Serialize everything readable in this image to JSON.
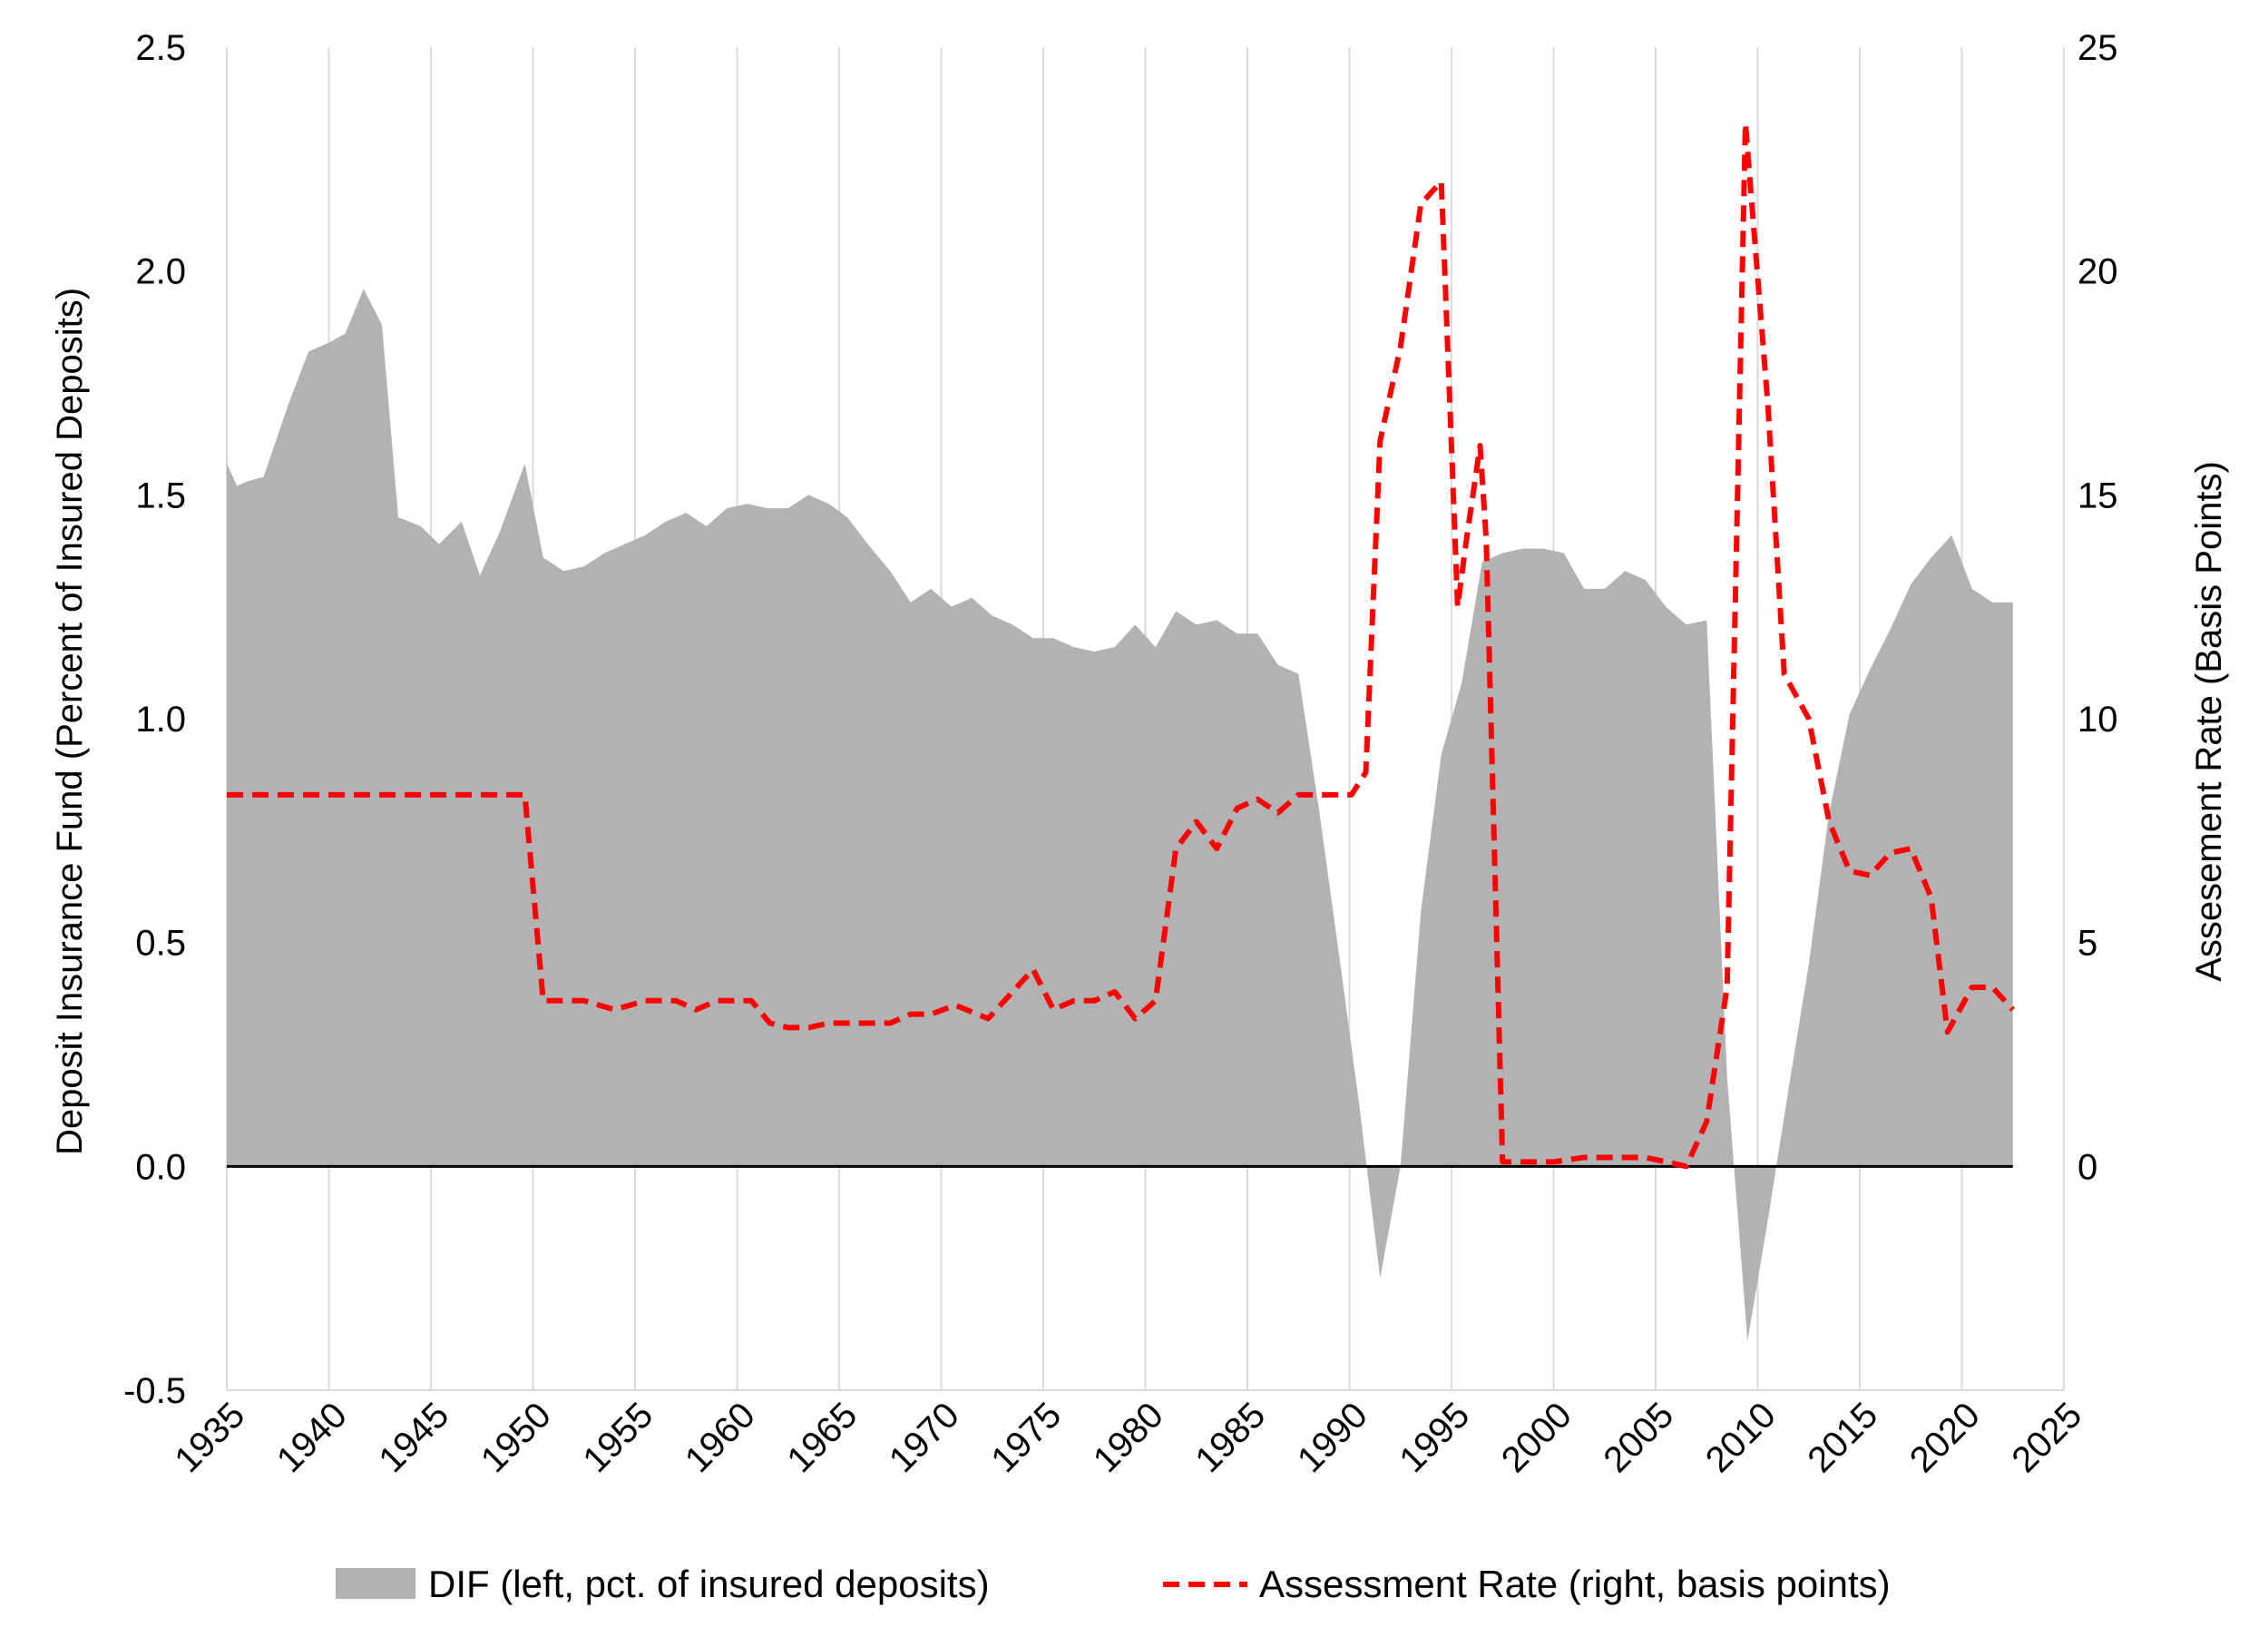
{
  "chart_data": {
    "type": "area",
    "ylabel_left": "Deposit Insurance Fund (Percent of Insured Deposits)",
    "ylabel_right": "Assesement Rate (Basis Points)",
    "x_range": [
      1935,
      2025
    ],
    "x_ticks": [
      "1935",
      "1940",
      "1945",
      "1950",
      "1955",
      "1960",
      "1965",
      "1970",
      "1975",
      "1980",
      "1985",
      "1990",
      "1995",
      "2000",
      "2005",
      "2010",
      "2015",
      "2020",
      "2025"
    ],
    "y_left_range": [
      -0.5,
      2.5
    ],
    "y_left_ticks": [
      "-0.5",
      "0.0",
      "0.5",
      "1.0",
      "1.5",
      "2.0",
      "2.5"
    ],
    "y_right_range": [
      -5,
      25
    ],
    "y_right_ticks": [
      "0",
      "5",
      "10",
      "15",
      "20",
      "25"
    ],
    "grid": "vertical",
    "legend_position": "bottom",
    "legend": {
      "dif": "DIF (left, pct. of insured deposits)",
      "rate": "Assessment Rate (right, basis points)"
    },
    "colors": {
      "dif": "#b2b2b2",
      "rate": "#ff0000",
      "zero_line": "#000000",
      "grid": "#d9d9d9"
    },
    "series": [
      {
        "name": "DIF (left, pct. of insured deposits)",
        "axis": "left",
        "style": "area",
        "points": [
          [
            1935,
            1.57
          ],
          [
            1935.5,
            1.52
          ],
          [
            1936,
            1.53
          ],
          [
            1936.8,
            1.54
          ],
          [
            1938,
            1.7
          ],
          [
            1939,
            1.82
          ],
          [
            1940,
            1.84
          ],
          [
            1940.8,
            1.86
          ],
          [
            1941.7,
            1.96
          ],
          [
            1942.6,
            1.88
          ],
          [
            1943.4,
            1.45
          ],
          [
            1944.5,
            1.43
          ],
          [
            1945.4,
            1.39
          ],
          [
            1946.5,
            1.44
          ],
          [
            1947.4,
            1.32
          ],
          [
            1948.4,
            1.42
          ],
          [
            1949.6,
            1.57
          ],
          [
            1950.5,
            1.36
          ],
          [
            1951.5,
            1.33
          ],
          [
            1952.5,
            1.34
          ],
          [
            1953.5,
            1.37
          ],
          [
            1954.5,
            1.39
          ],
          [
            1955.5,
            1.41
          ],
          [
            1956.5,
            1.44
          ],
          [
            1957.5,
            1.46
          ],
          [
            1958.5,
            1.43
          ],
          [
            1959.5,
            1.47
          ],
          [
            1960.5,
            1.48
          ],
          [
            1961.5,
            1.47
          ],
          [
            1962.5,
            1.47
          ],
          [
            1963.5,
            1.5
          ],
          [
            1964.5,
            1.48
          ],
          [
            1965.4,
            1.45
          ],
          [
            1966.4,
            1.39
          ],
          [
            1967.5,
            1.33
          ],
          [
            1968.5,
            1.26
          ],
          [
            1969.5,
            1.29
          ],
          [
            1970.5,
            1.25
          ],
          [
            1971.5,
            1.27
          ],
          [
            1972.5,
            1.23
          ],
          [
            1973.5,
            1.21
          ],
          [
            1974.5,
            1.18
          ],
          [
            1975.5,
            1.18
          ],
          [
            1976.5,
            1.16
          ],
          [
            1977.5,
            1.15
          ],
          [
            1978.5,
            1.16
          ],
          [
            1979.5,
            1.21
          ],
          [
            1980.5,
            1.16
          ],
          [
            1981.5,
            1.24
          ],
          [
            1982.5,
            1.21
          ],
          [
            1983.5,
            1.22
          ],
          [
            1984.5,
            1.19
          ],
          [
            1985.5,
            1.19
          ],
          [
            1986.5,
            1.12
          ],
          [
            1987.5,
            1.1
          ],
          [
            1988.5,
            0.8
          ],
          [
            1989.5,
            0.47
          ],
          [
            1990.5,
            0.13
          ],
          [
            1991.5,
            -0.25
          ],
          [
            1992.5,
            0.0
          ],
          [
            1993.5,
            0.57
          ],
          [
            1994.5,
            0.92
          ],
          [
            1995.5,
            1.08
          ],
          [
            1996.5,
            1.35
          ],
          [
            1997.5,
            1.37
          ],
          [
            1998.5,
            1.38
          ],
          [
            1999.5,
            1.38
          ],
          [
            2000.5,
            1.37
          ],
          [
            2001.5,
            1.29
          ],
          [
            2002.5,
            1.29
          ],
          [
            2003.5,
            1.33
          ],
          [
            2004.5,
            1.31
          ],
          [
            2005.5,
            1.25
          ],
          [
            2006.5,
            1.21
          ],
          [
            2007.5,
            1.22
          ],
          [
            2008.5,
            0.2
          ],
          [
            2009.5,
            -0.39
          ],
          [
            2010.5,
            -0.12
          ],
          [
            2011.5,
            0.17
          ],
          [
            2012.5,
            0.45
          ],
          [
            2013.5,
            0.79
          ],
          [
            2014.5,
            1.01
          ],
          [
            2015.5,
            1.11
          ],
          [
            2016.5,
            1.2
          ],
          [
            2017.5,
            1.3
          ],
          [
            2018.5,
            1.36
          ],
          [
            2019.5,
            1.41
          ],
          [
            2020.5,
            1.29
          ],
          [
            2021.5,
            1.26
          ],
          [
            2022.5,
            1.26
          ]
        ]
      },
      {
        "name": "Assessment Rate (right, basis points)",
        "axis": "right",
        "style": "dashed-line",
        "points": [
          [
            1935,
            8.3
          ],
          [
            1949.6,
            8.3
          ],
          [
            1950.5,
            3.7
          ],
          [
            1952.5,
            3.7
          ],
          [
            1954,
            3.5
          ],
          [
            1955.5,
            3.7
          ],
          [
            1957,
            3.7
          ],
          [
            1958,
            3.5
          ],
          [
            1959,
            3.7
          ],
          [
            1960.7,
            3.7
          ],
          [
            1961.6,
            3.2
          ],
          [
            1962.5,
            3.1
          ],
          [
            1963.5,
            3.1
          ],
          [
            1964.5,
            3.2
          ],
          [
            1967.5,
            3.2
          ],
          [
            1968.5,
            3.4
          ],
          [
            1969.5,
            3.4
          ],
          [
            1970.7,
            3.6
          ],
          [
            1972.3,
            3.3
          ],
          [
            1973.5,
            3.9
          ],
          [
            1974.5,
            4.4
          ],
          [
            1975.5,
            3.5
          ],
          [
            1976.5,
            3.7
          ],
          [
            1977.5,
            3.7
          ],
          [
            1978.5,
            3.9
          ],
          [
            1979.5,
            3.3
          ],
          [
            1980.5,
            3.7
          ],
          [
            1981.5,
            7.1
          ],
          [
            1982.5,
            7.7
          ],
          [
            1983.5,
            7.1
          ],
          [
            1984.5,
            8.0
          ],
          [
            1985.5,
            8.2
          ],
          [
            1986.5,
            7.9
          ],
          [
            1987.5,
            8.3
          ],
          [
            1989.5,
            8.3
          ],
          [
            1990.1,
            8.3
          ],
          [
            1990.8,
            8.8
          ],
          [
            1991.5,
            16.2
          ],
          [
            1992.5,
            18.3
          ],
          [
            1993.5,
            21.5
          ],
          [
            1994.5,
            22.0
          ],
          [
            1995.3,
            12.5
          ],
          [
            1995.7,
            13.9
          ],
          [
            1996.4,
            16.1
          ],
          [
            1996.7,
            14.0
          ],
          [
            1997.5,
            0.1
          ],
          [
            1998.5,
            0.1
          ],
          [
            2000,
            0.1
          ],
          [
            2001.5,
            0.2
          ],
          [
            2003,
            0.2
          ],
          [
            2004.5,
            0.2
          ],
          [
            2005.5,
            0.1
          ],
          [
            2006.5,
            0.0
          ],
          [
            2007.5,
            1.0
          ],
          [
            2008.5,
            4.0
          ],
          [
            2009.4,
            23.3
          ],
          [
            2009.8,
            21.0
          ],
          [
            2010.5,
            17.0
          ],
          [
            2011.3,
            11.0
          ],
          [
            2012.5,
            10.0
          ],
          [
            2013.5,
            7.7
          ],
          [
            2014.5,
            6.6
          ],
          [
            2015.5,
            6.5
          ],
          [
            2016.5,
            7.0
          ],
          [
            2017.5,
            7.1
          ],
          [
            2018.5,
            6.0
          ],
          [
            2019.3,
            3.0
          ],
          [
            2020.5,
            4.0
          ],
          [
            2021.5,
            4.0
          ],
          [
            2022.5,
            3.5
          ]
        ]
      }
    ]
  }
}
